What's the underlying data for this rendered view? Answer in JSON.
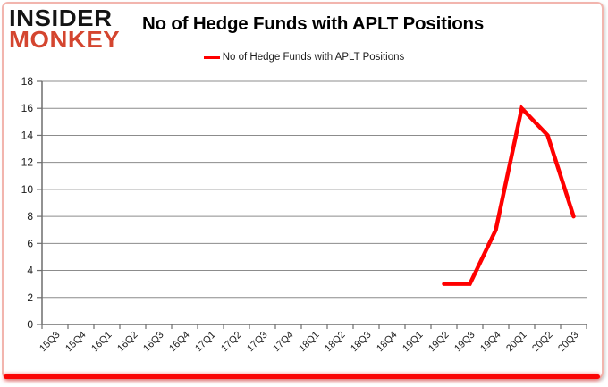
{
  "logo": {
    "line1": "INSIDER",
    "line2": "MONKEY"
  },
  "title": "No of Hedge Funds with APLT Positions",
  "legend": {
    "label": "No of Hedge Funds with APLT Positions",
    "line_color": "#ff0000"
  },
  "colors": {
    "series_red": "#ff0000",
    "logo_red": "#d4452f",
    "border_pink": "#f2b5ae",
    "bottom_bar_red": "#fb0404",
    "gridline_gray": "#8c8c8c",
    "axis_gray": "#6e6e6e",
    "label_dark": "#1a1a1a"
  },
  "chart_data": {
    "type": "line",
    "title": "No of Hedge Funds with APLT Positions",
    "categories": [
      "15Q3",
      "15Q4",
      "16Q1",
      "16Q2",
      "16Q3",
      "16Q4",
      "17Q1",
      "17Q2",
      "17Q3",
      "17Q4",
      "18Q1",
      "18Q2",
      "18Q3",
      "18Q4",
      "19Q1",
      "19Q2",
      "19Q3",
      "19Q4",
      "20Q1",
      "20Q2",
      "20Q3"
    ],
    "series": [
      {
        "name": "No of Hedge Funds with APLT Positions",
        "color": "#ff0000",
        "values": [
          null,
          null,
          null,
          null,
          null,
          null,
          null,
          null,
          null,
          null,
          null,
          null,
          null,
          null,
          null,
          3,
          3,
          7,
          16,
          14,
          8
        ]
      }
    ],
    "xlabel": "",
    "ylabel": "",
    "ylim": [
      0,
      18
    ],
    "ytick_step": 2,
    "grid": true,
    "legend_position": "top"
  }
}
